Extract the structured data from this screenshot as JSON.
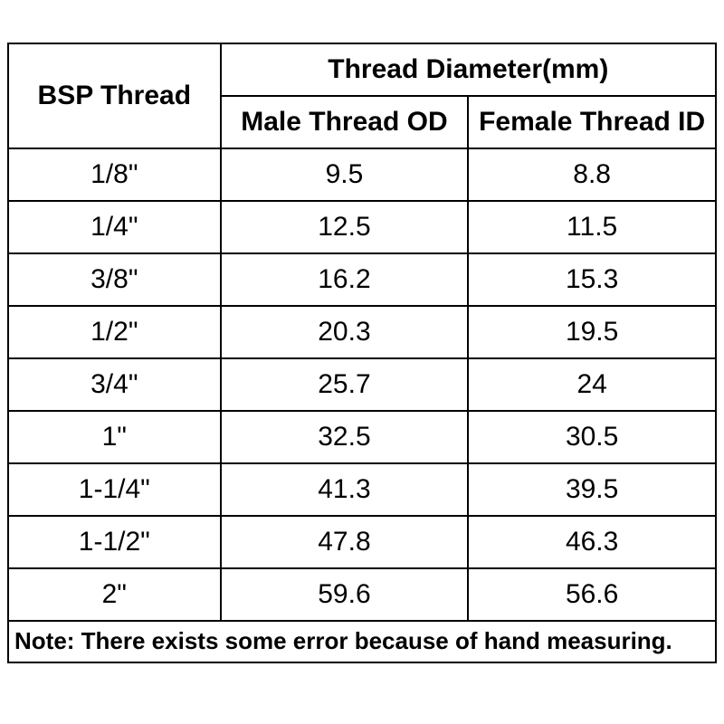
{
  "table": {
    "type": "table",
    "background_color": "#ffffff",
    "border_color": "#000000",
    "text_color": "#000000",
    "header_fontsize": 30,
    "header_fontweight": 700,
    "cell_fontsize": 30,
    "cell_fontweight": 400,
    "note_fontsize": 26,
    "note_fontweight": 700,
    "column_widths_pct": [
      30,
      35,
      35
    ],
    "header": {
      "bsp_label": "BSP Thread",
      "diameter_group_label": "Thread Diameter(mm)",
      "male_label": "Male Thread OD",
      "female_label": "Female Thread ID"
    },
    "columns": [
      "BSP Thread",
      "Male Thread OD",
      "Female Thread ID"
    ],
    "rows": [
      {
        "bsp": "1/8\"",
        "male": "9.5",
        "female": "8.8"
      },
      {
        "bsp": "1/4\"",
        "male": "12.5",
        "female": "11.5"
      },
      {
        "bsp": "3/8\"",
        "male": "16.2",
        "female": "15.3"
      },
      {
        "bsp": "1/2\"",
        "male": "20.3",
        "female": "19.5"
      },
      {
        "bsp": "3/4\"",
        "male": "25.7",
        "female": "24"
      },
      {
        "bsp": "1\"",
        "male": "32.5",
        "female": "30.5"
      },
      {
        "bsp": "1-1/4\"",
        "male": "41.3",
        "female": "39.5"
      },
      {
        "bsp": "1-1/2\"",
        "male": "47.8",
        "female": "46.3"
      },
      {
        "bsp": "2\"",
        "male": "59.6",
        "female": "56.6"
      }
    ],
    "note": "Note: There exists some error because of hand measuring."
  }
}
